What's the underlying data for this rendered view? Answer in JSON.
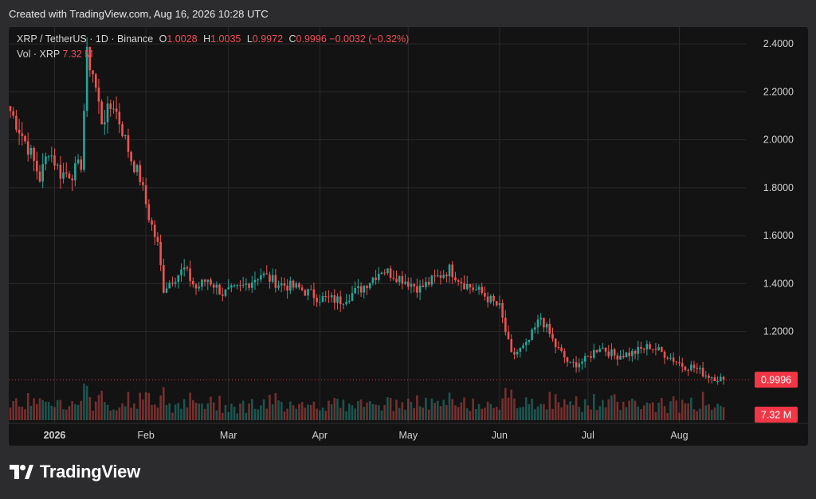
{
  "header": {
    "created_text": "Created with TradingView.com, Aug 16, 2026 10:28 UTC"
  },
  "legend": {
    "symbol": "XRP / TetherUS · 1D · Binance",
    "o_label": "O",
    "o_value": "1.0028",
    "h_label": "H",
    "h_value": "1.0035",
    "l_label": "L",
    "l_value": "0.9972",
    "c_label": "C",
    "c_value": "0.9996",
    "change": "−0.0032 (−0.32%)",
    "vol_label": "Vol · XRP",
    "vol_value": "7.32 M"
  },
  "footer": {
    "logo_text": "TradingView"
  },
  "colors": {
    "up": "#26a69a",
    "down": "#ef5350",
    "price_badge": "#f23645",
    "grid": "#2a2a2a",
    "axis_text": "#d1d1d1"
  },
  "chart_data": {
    "type": "candlestick",
    "title": "XRP / TetherUS · 1D · Binance",
    "x_ticks": [
      "2026",
      "Feb",
      "Mar",
      "Apr",
      "May",
      "Jun",
      "Jul",
      "Aug"
    ],
    "y_ticks": [
      "2.4000",
      "2.2000",
      "2.0000",
      "1.8000",
      "1.6000",
      "1.4000",
      "1.2000"
    ],
    "ylim": [
      0.96,
      2.47
    ],
    "last_price": 0.9996,
    "last_price_label": "0.9996",
    "volume_label": "7.32 M",
    "grid": true,
    "close_path": [
      [
        "2025-12-17",
        2.12
      ],
      [
        "2025-12-21",
        2.02
      ],
      [
        "2025-12-24",
        1.94
      ],
      [
        "2025-12-27",
        1.84
      ],
      [
        "2025-12-30",
        1.96
      ],
      [
        "2026-01-03",
        1.86
      ],
      [
        "2026-01-07",
        1.86
      ],
      [
        "2026-01-10",
        1.9
      ],
      [
        "2026-01-12",
        2.35
      ],
      [
        "2026-01-14",
        2.28
      ],
      [
        "2026-01-17",
        2.08
      ],
      [
        "2026-01-21",
        2.15
      ],
      [
        "2026-01-24",
        2.04
      ],
      [
        "2026-01-27",
        1.92
      ],
      [
        "2026-01-30",
        1.84
      ],
      [
        "2026-02-02",
        1.68
      ],
      [
        "2026-02-05",
        1.56
      ],
      [
        "2026-02-07",
        1.38
      ],
      [
        "2026-02-10",
        1.42
      ],
      [
        "2026-02-14",
        1.46
      ],
      [
        "2026-02-18",
        1.38
      ],
      [
        "2026-02-22",
        1.42
      ],
      [
        "2026-02-27",
        1.36
      ],
      [
        "2026-03-05",
        1.38
      ],
      [
        "2026-03-12",
        1.44
      ],
      [
        "2026-03-18",
        1.4
      ],
      [
        "2026-03-25",
        1.38
      ],
      [
        "2026-04-01",
        1.34
      ],
      [
        "2026-04-08",
        1.33
      ],
      [
        "2026-04-15",
        1.38
      ],
      [
        "2026-04-22",
        1.46
      ],
      [
        "2026-04-29",
        1.42
      ],
      [
        "2026-05-05",
        1.38
      ],
      [
        "2026-05-10",
        1.42
      ],
      [
        "2026-05-15",
        1.46
      ],
      [
        "2026-05-20",
        1.4
      ],
      [
        "2026-05-26",
        1.36
      ],
      [
        "2026-06-01",
        1.3
      ],
      [
        "2026-06-05",
        1.1
      ],
      [
        "2026-06-10",
        1.14
      ],
      [
        "2026-06-15",
        1.26
      ],
      [
        "2026-06-20",
        1.14
      ],
      [
        "2026-06-25",
        1.06
      ],
      [
        "2026-06-30",
        1.08
      ],
      [
        "2026-07-05",
        1.14
      ],
      [
        "2026-07-10",
        1.1
      ],
      [
        "2026-07-16",
        1.11
      ],
      [
        "2026-07-22",
        1.14
      ],
      [
        "2026-07-28",
        1.1
      ],
      [
        "2026-08-02",
        1.06
      ],
      [
        "2026-08-06",
        1.05
      ],
      [
        "2026-08-10",
        1.02
      ],
      [
        "2026-08-16",
        0.9996
      ]
    ]
  }
}
